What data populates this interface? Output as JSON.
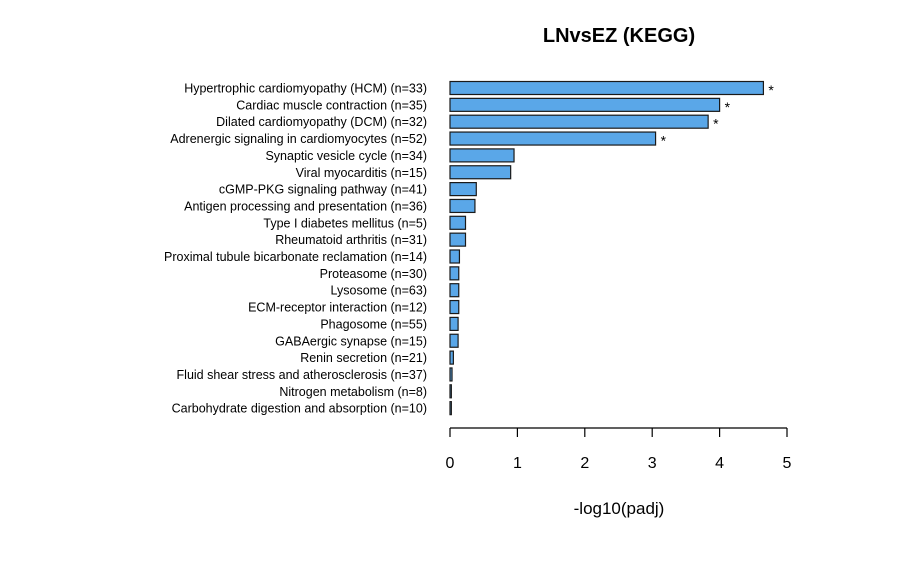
{
  "chart_data": {
    "type": "bar",
    "orientation": "horizontal",
    "title": "LNvsEZ (KEGG)",
    "xlabel": "-log10(padj)",
    "ylabel": "",
    "xlim": [
      0,
      5
    ],
    "xticks": [
      0,
      1,
      2,
      3,
      4,
      5
    ],
    "grid": false,
    "bar_color": "#5aa7e8",
    "bar_edge_color": "#1a1a1a",
    "categories": [
      "Hypertrophic cardiomyopathy (HCM) (n=33)",
      "Cardiac muscle contraction (n=35)",
      "Dilated cardiomyopathy (DCM) (n=32)",
      "Adrenergic signaling in cardiomyocytes (n=52)",
      "Synaptic vesicle cycle (n=34)",
      "Viral myocarditis (n=15)",
      "cGMP-PKG signaling pathway (n=41)",
      "Antigen processing and presentation (n=36)",
      "Type I diabetes mellitus (n=5)",
      "Rheumatoid arthritis (n=31)",
      "Proximal tubule bicarbonate reclamation (n=14)",
      "Proteasome (n=30)",
      "Lysosome (n=63)",
      "ECM-receptor interaction (n=12)",
      "Phagosome (n=55)",
      "GABAergic synapse (n=15)",
      "Renin secretion (n=21)",
      "Fluid shear stress and atherosclerosis (n=37)",
      "Nitrogen metabolism (n=8)",
      "Carbohydrate digestion and absorption (n=10)"
    ],
    "values": [
      4.65,
      4.0,
      3.83,
      3.05,
      0.95,
      0.9,
      0.39,
      0.37,
      0.23,
      0.23,
      0.14,
      0.13,
      0.13,
      0.13,
      0.12,
      0.12,
      0.05,
      0.03,
      0.02,
      0.02
    ],
    "significance_marks": [
      "*",
      "*",
      "*",
      "*",
      "",
      "",
      "",
      "",
      "",
      "",
      "",
      "",
      "",
      "",
      "",
      "",
      "",
      "",
      "",
      ""
    ]
  }
}
